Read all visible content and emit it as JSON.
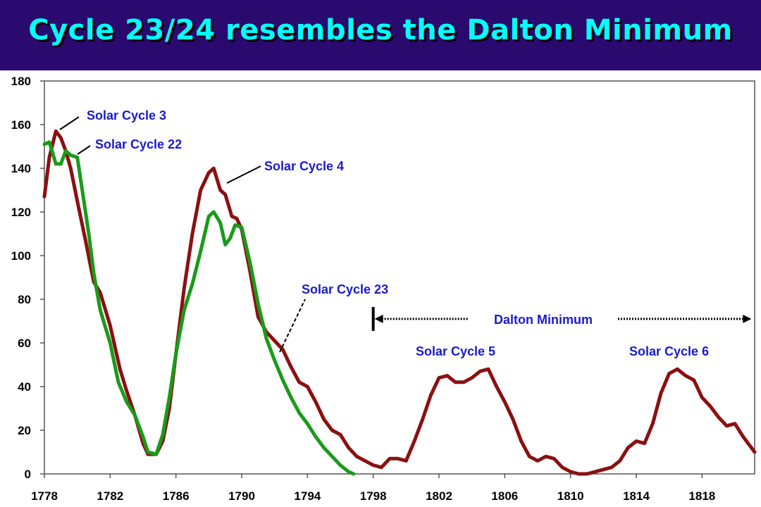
{
  "header": {
    "title": "Cycle 23/24 resembles the Dalton Minimum",
    "background": "#2a0a6e",
    "title_color": "#00ffff"
  },
  "chart_data": {
    "type": "line",
    "title": "",
    "xlabel": "",
    "ylabel": "",
    "xlim": [
      1778,
      1821.2
    ],
    "ylim": [
      0,
      180
    ],
    "x_ticks": [
      "1778",
      "1782",
      "1786",
      "1790",
      "1794",
      "1798",
      "1802",
      "1806",
      "1810",
      "1814",
      "1818"
    ],
    "y_ticks": [
      "0",
      "20",
      "40",
      "60",
      "80",
      "100",
      "120",
      "140",
      "160",
      "180"
    ],
    "grid": false,
    "series": [
      {
        "color": "#8b1010",
        "points": [
          [
            1778.0,
            127
          ],
          [
            1778.3,
            145
          ],
          [
            1778.7,
            157
          ],
          [
            1779.0,
            154
          ],
          [
            1779.3,
            148
          ],
          [
            1779.6,
            140
          ],
          [
            1780.0,
            125
          ],
          [
            1780.5,
            107
          ],
          [
            1781.0,
            88
          ],
          [
            1781.4,
            83
          ],
          [
            1782.0,
            68
          ],
          [
            1782.6,
            48
          ],
          [
            1783.0,
            38
          ],
          [
            1783.5,
            27
          ],
          [
            1784.0,
            14
          ],
          [
            1784.3,
            9
          ],
          [
            1784.8,
            9
          ],
          [
            1785.2,
            15
          ],
          [
            1785.6,
            30
          ],
          [
            1786.0,
            55
          ],
          [
            1786.5,
            85
          ],
          [
            1787.0,
            110
          ],
          [
            1787.5,
            130
          ],
          [
            1788.0,
            138
          ],
          [
            1788.3,
            140
          ],
          [
            1788.7,
            130
          ],
          [
            1789.0,
            128
          ],
          [
            1789.4,
            118
          ],
          [
            1789.7,
            117
          ],
          [
            1790.0,
            112
          ],
          [
            1790.5,
            93
          ],
          [
            1791.0,
            72
          ],
          [
            1791.5,
            65
          ],
          [
            1792.0,
            61
          ],
          [
            1792.5,
            57
          ],
          [
            1793.0,
            49
          ],
          [
            1793.5,
            42
          ],
          [
            1794.0,
            40
          ],
          [
            1794.5,
            33
          ],
          [
            1795.0,
            25
          ],
          [
            1795.5,
            20
          ],
          [
            1796.0,
            18
          ],
          [
            1796.5,
            12
          ],
          [
            1797.0,
            8
          ],
          [
            1797.5,
            6
          ],
          [
            1798.0,
            4
          ],
          [
            1798.5,
            3
          ],
          [
            1799.0,
            7
          ],
          [
            1799.5,
            7
          ],
          [
            1800.0,
            6
          ],
          [
            1800.5,
            15
          ],
          [
            1801.0,
            25
          ],
          [
            1801.5,
            36
          ],
          [
            1802.0,
            44
          ],
          [
            1802.5,
            45
          ],
          [
            1803.0,
            42
          ],
          [
            1803.5,
            42
          ],
          [
            1804.0,
            44
          ],
          [
            1804.5,
            47
          ],
          [
            1805.0,
            48
          ],
          [
            1805.5,
            40
          ],
          [
            1806.0,
            33
          ],
          [
            1806.5,
            25
          ],
          [
            1807.0,
            15
          ],
          [
            1807.5,
            8
          ],
          [
            1808.0,
            6
          ],
          [
            1808.5,
            8
          ],
          [
            1809.0,
            7
          ],
          [
            1809.5,
            3
          ],
          [
            1810.0,
            1
          ],
          [
            1810.5,
            0
          ],
          [
            1811.0,
            0
          ],
          [
            1811.5,
            1
          ],
          [
            1812.0,
            2
          ],
          [
            1812.5,
            3
          ],
          [
            1813.0,
            6
          ],
          [
            1813.5,
            12
          ],
          [
            1814.0,
            15
          ],
          [
            1814.5,
            14
          ],
          [
            1815.0,
            23
          ],
          [
            1815.5,
            37
          ],
          [
            1816.0,
            46
          ],
          [
            1816.5,
            48
          ],
          [
            1817.0,
            45
          ],
          [
            1817.5,
            43
          ],
          [
            1818.0,
            35
          ],
          [
            1818.5,
            31
          ],
          [
            1819.0,
            26
          ],
          [
            1819.5,
            22
          ],
          [
            1820.0,
            23
          ],
          [
            1820.5,
            17
          ],
          [
            1821.2,
            10
          ]
        ]
      },
      {
        "color": "#1a9a1a",
        "points": [
          [
            1778.0,
            151
          ],
          [
            1778.3,
            152
          ],
          [
            1778.7,
            142
          ],
          [
            1779.0,
            142
          ],
          [
            1779.3,
            148
          ],
          [
            1779.6,
            146
          ],
          [
            1780.0,
            145
          ],
          [
            1780.3,
            130
          ],
          [
            1780.7,
            110
          ],
          [
            1781.0,
            92
          ],
          [
            1781.4,
            75
          ],
          [
            1782.0,
            60
          ],
          [
            1782.5,
            42
          ],
          [
            1783.0,
            33
          ],
          [
            1783.5,
            27
          ],
          [
            1784.0,
            17
          ],
          [
            1784.3,
            10
          ],
          [
            1784.8,
            9
          ],
          [
            1785.2,
            18
          ],
          [
            1785.6,
            35
          ],
          [
            1786.0,
            55
          ],
          [
            1786.5,
            75
          ],
          [
            1787.0,
            87
          ],
          [
            1787.5,
            102
          ],
          [
            1788.0,
            118
          ],
          [
            1788.3,
            120
          ],
          [
            1788.7,
            115
          ],
          [
            1789.0,
            105
          ],
          [
            1789.3,
            108
          ],
          [
            1789.6,
            114
          ],
          [
            1790.0,
            113
          ],
          [
            1790.5,
            97
          ],
          [
            1791.0,
            78
          ],
          [
            1791.5,
            62
          ],
          [
            1792.0,
            52
          ],
          [
            1792.5,
            43
          ],
          [
            1793.0,
            35
          ],
          [
            1793.5,
            28
          ],
          [
            1794.0,
            23
          ],
          [
            1794.5,
            17
          ],
          [
            1795.0,
            12
          ],
          [
            1795.5,
            8
          ],
          [
            1796.0,
            4
          ],
          [
            1796.5,
            1
          ],
          [
            1796.8,
            0
          ]
        ]
      }
    ],
    "annotations": [
      {
        "text": "Solar Cycle 3",
        "color": "#1a1acc"
      },
      {
        "text": "Solar Cycle 22",
        "color": "#1a1acc"
      },
      {
        "text": "Solar Cycle 4",
        "color": "#1a1acc"
      },
      {
        "text": "Solar Cycle 23",
        "color": "#1a1acc"
      },
      {
        "text": "Solar Cycle 5",
        "color": "#1a1acc"
      },
      {
        "text": "Solar Cycle 6",
        "color": "#1a1acc"
      },
      {
        "text": "Dalton Minimum",
        "color": "#1a1acc",
        "span": [
          1798.0,
          1821.0
        ],
        "level": 71
      }
    ]
  }
}
